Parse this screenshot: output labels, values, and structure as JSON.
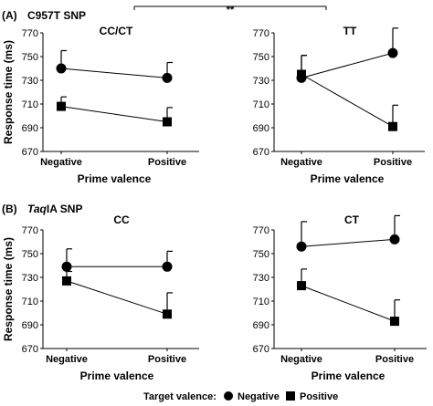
{
  "panels": {
    "A": {
      "label": "(A)",
      "snp": "C957T SNP"
    },
    "B": {
      "label": "(B)",
      "snp_italic": "Taq",
      "snp_rest": "IA SNP"
    }
  },
  "significance": "**",
  "legend": {
    "title": "Target valence:",
    "negative": "Negative",
    "positive": "Positive"
  },
  "chart_data": [
    {
      "type": "line",
      "title": "CC/CT",
      "categories": [
        "Negative",
        "Positive"
      ],
      "xlabel": "Prime valence",
      "ylabel": "Response time (ms)",
      "ylim": [
        670,
        770
      ],
      "yticks": [
        670,
        690,
        710,
        730,
        750,
        770
      ],
      "series": [
        {
          "name": "Negative",
          "marker": "circle",
          "values": [
            740,
            732
          ],
          "error": [
            15,
            13
          ]
        },
        {
          "name": "Positive",
          "marker": "square",
          "values": [
            708,
            695
          ],
          "error": [
            8,
            12
          ]
        }
      ]
    },
    {
      "type": "line",
      "title": "TT",
      "categories": [
        "Negative",
        "Positive"
      ],
      "xlabel": "Prime valence",
      "ylabel": "",
      "ylim": [
        670,
        770
      ],
      "yticks": [
        670,
        690,
        710,
        730,
        750,
        770
      ],
      "series": [
        {
          "name": "Negative",
          "marker": "circle",
          "values": [
            732,
            753
          ],
          "error": [
            19,
            21
          ]
        },
        {
          "name": "Positive",
          "marker": "square",
          "values": [
            735,
            691
          ],
          "error": [
            16,
            18
          ]
        }
      ]
    },
    {
      "type": "line",
      "title": "CC",
      "categories": [
        "Negative",
        "Positive"
      ],
      "xlabel": "Prime valence",
      "ylabel": "Response time (ms)",
      "ylim": [
        670,
        770
      ],
      "yticks": [
        670,
        690,
        710,
        730,
        750,
        770
      ],
      "series": [
        {
          "name": "Negative",
          "marker": "circle",
          "values": [
            739,
            739
          ],
          "error": [
            15,
            13
          ]
        },
        {
          "name": "Positive",
          "marker": "square",
          "values": [
            727,
            699
          ],
          "error": [
            8,
            18
          ]
        }
      ]
    },
    {
      "type": "line",
      "title": "CT",
      "categories": [
        "Negative",
        "Positive"
      ],
      "xlabel": "Prime valence",
      "ylabel": "",
      "ylim": [
        670,
        770
      ],
      "yticks": [
        670,
        690,
        710,
        730,
        750,
        770
      ],
      "series": [
        {
          "name": "Negative",
          "marker": "circle",
          "values": [
            756,
            762
          ],
          "error": [
            21,
            20
          ]
        },
        {
          "name": "Positive",
          "marker": "square",
          "values": [
            723,
            693
          ],
          "error": [
            14,
            18
          ]
        }
      ]
    }
  ]
}
